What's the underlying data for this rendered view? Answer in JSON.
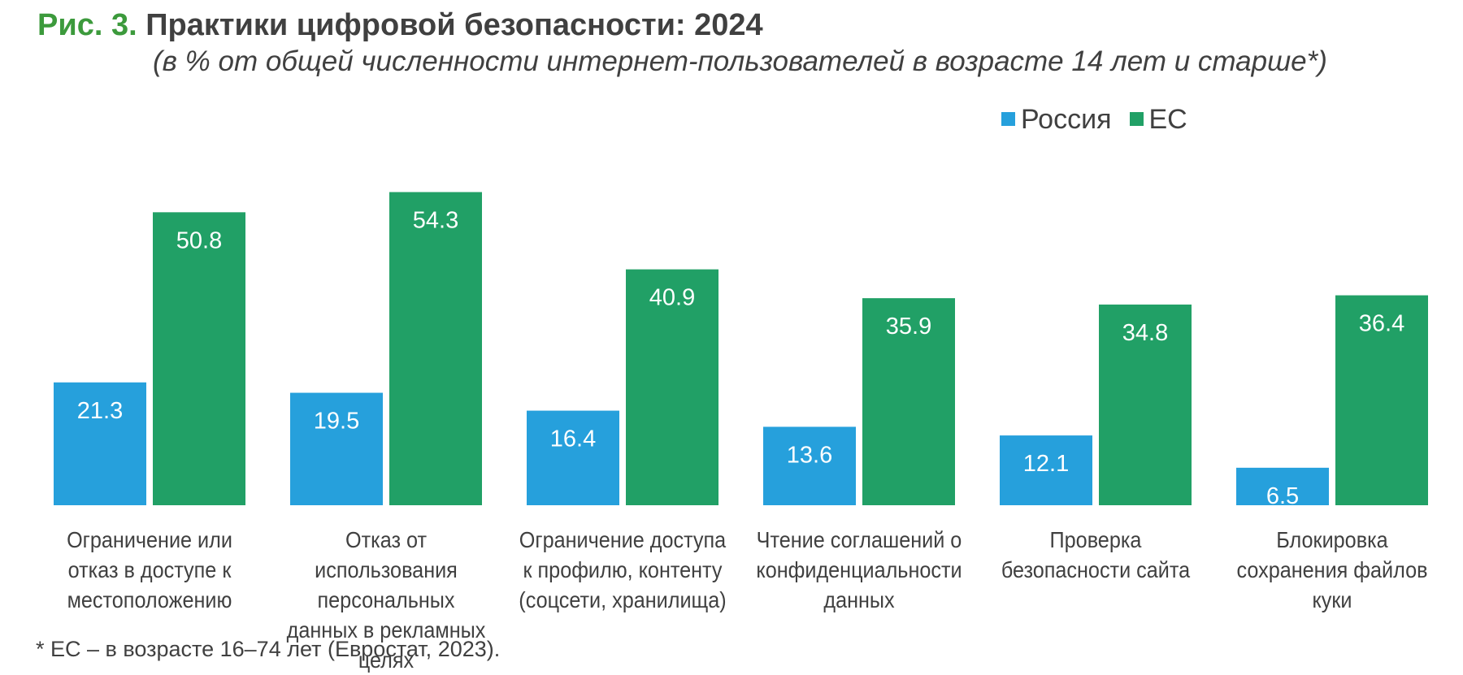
{
  "title": {
    "prefix": "Рис. 3.",
    "text": "Практики цифровой безопасности: 2024"
  },
  "subtitle": "(в % от общей численности интернет-пользователей в возрасте 14 лет и старше*)",
  "footnote": "* ЕС – в возрасте 16–74 лет (Евростат, 2023).",
  "colors": {
    "title_prefix": "#3c9a3c",
    "russia": "#26a0dc",
    "eu": "#21a066",
    "text": "#404040"
  },
  "chart_data": {
    "type": "bar",
    "categories": [
      "Ограничение или отказ в доступе к местоположению",
      "Отказ от использования персональных данных в рекламных целях",
      "Ограничение доступа к профилю, контенту (соцсети, хранилища)",
      "Чтение соглашений о конфиденциальности данных",
      "Проверка безопасности сайта",
      "Блокировка сохранения файлов куки"
    ],
    "series": [
      {
        "name": "Россия",
        "color": "#26a0dc",
        "values": [
          21.3,
          19.5,
          16.4,
          13.6,
          12.1,
          6.5
        ]
      },
      {
        "name": "ЕС",
        "color": "#21a066",
        "values": [
          50.8,
          54.3,
          40.9,
          35.9,
          34.8,
          36.4
        ]
      }
    ],
    "data_labels": true,
    "legend_position": "top-right",
    "grid": false,
    "ylim": [
      0,
      60
    ]
  }
}
